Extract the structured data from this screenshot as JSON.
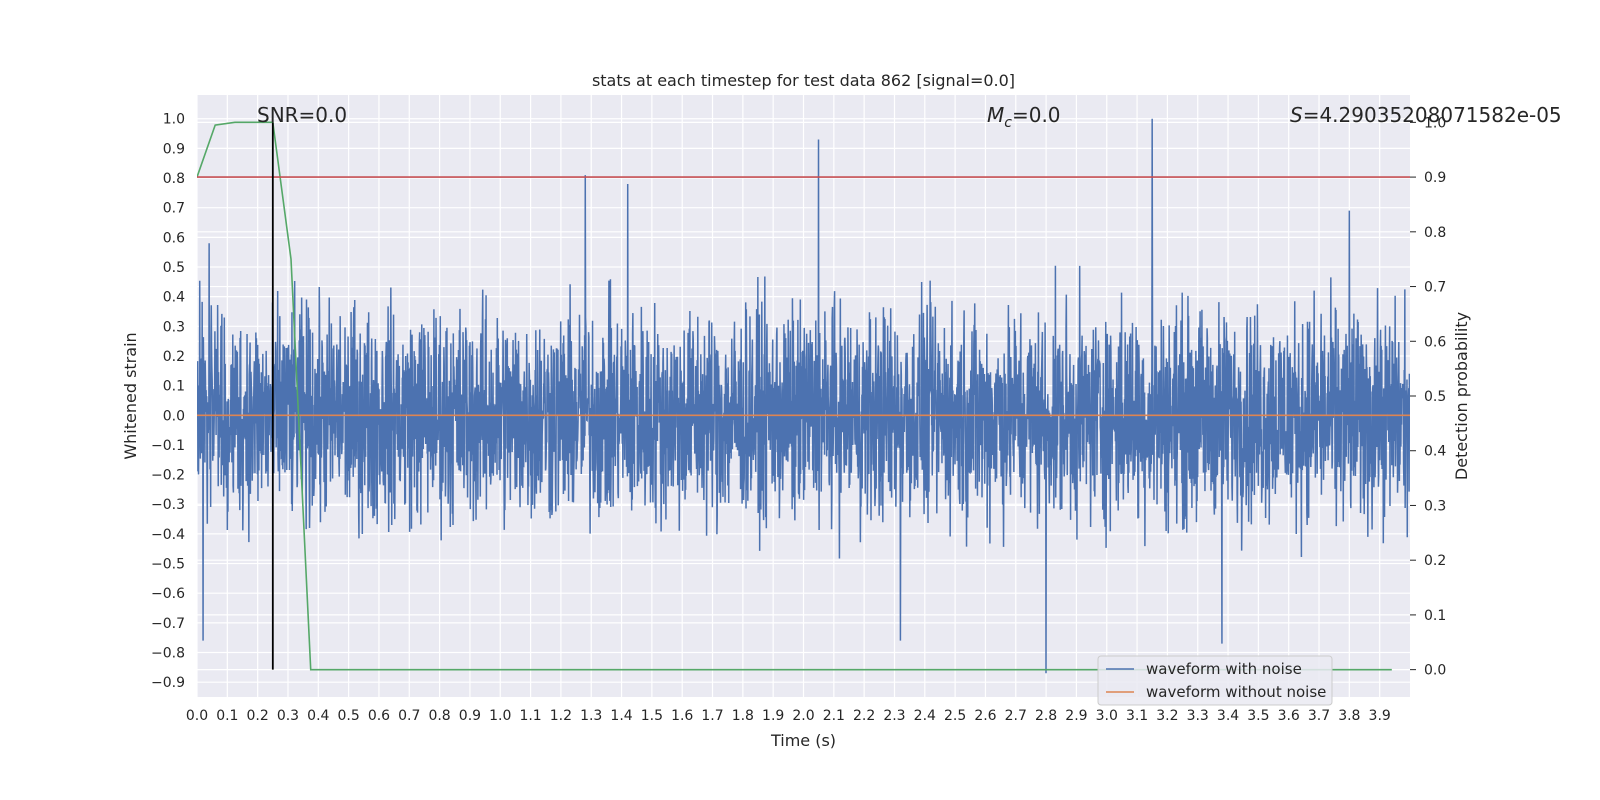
{
  "chart_data": {
    "type": "line",
    "title": "stats at each timestep for test data 862 [signal=0.0]",
    "xlabel": "Time (s)",
    "ylabel": "Whitened strain",
    "y2label": "Detection probability",
    "xlim": [
      0.0,
      4.0
    ],
    "ylim": [
      -0.95,
      1.08
    ],
    "y2lim": [
      -0.05,
      1.05
    ],
    "x_ticks": [
      0.0,
      0.1,
      0.2,
      0.3,
      0.4,
      0.5,
      0.6,
      0.7,
      0.8,
      0.9,
      1.0,
      1.1,
      1.2,
      1.3,
      1.4,
      1.5,
      1.6,
      1.7,
      1.8,
      1.9,
      2.0,
      2.1,
      2.2,
      2.3,
      2.4,
      2.5,
      2.6,
      2.7,
      2.8,
      2.9,
      3.0,
      3.1,
      3.2,
      3.3,
      3.4,
      3.5,
      3.6,
      3.7,
      3.8,
      3.9
    ],
    "y_ticks": [
      1.0,
      0.9,
      0.8,
      0.7,
      0.6,
      0.5,
      0.4,
      0.3,
      0.2,
      0.1,
      0.0,
      -0.1,
      -0.2,
      -0.3,
      -0.4,
      -0.5,
      -0.6,
      -0.7,
      -0.8,
      -0.9
    ],
    "y2_ticks": [
      1.0,
      0.9,
      0.8,
      0.7,
      0.6,
      0.5,
      0.4,
      0.3,
      0.2,
      0.1,
      0.0
    ],
    "grid": true,
    "legend_position": "lower-right",
    "annotations": {
      "snr": "SNR=0.0",
      "mc_symbol": "M",
      "mc_sub": "c",
      "mc_value": "=0.0",
      "s_symbol": "S",
      "s_value": "=4.29035208071582e-05"
    },
    "series": [
      {
        "name": "waveform with noise",
        "color": "#4c72b0",
        "axis": "left",
        "noise": {
          "samples": 4000,
          "typical_range": [
            -0.55,
            0.55
          ],
          "min": -0.87,
          "max": 1.0
        },
        "peaks": [
          [
            0.02,
            -0.76
          ],
          [
            0.04,
            0.58
          ],
          [
            1.28,
            0.81
          ],
          [
            1.42,
            0.78
          ],
          [
            2.05,
            0.93
          ],
          [
            2.32,
            -0.76
          ],
          [
            2.8,
            -0.87
          ],
          [
            3.15,
            1.0
          ],
          [
            3.38,
            -0.77
          ],
          [
            3.8,
            0.69
          ]
        ]
      },
      {
        "name": "waveform without noise",
        "color": "#dd8452",
        "axis": "left",
        "x": [
          0.0,
          4.0
        ],
        "y": [
          0.0,
          0.0
        ]
      },
      {
        "color": "#55a868",
        "axis": "right",
        "x": [
          0.0,
          0.06,
          0.125,
          0.19,
          0.25,
          0.31,
          0.375,
          3.94
        ],
        "y": [
          0.9,
          0.995,
          1.0,
          1.0,
          1.0,
          0.75,
          0.0,
          0.0
        ]
      },
      {
        "color": "#c44e52",
        "axis": "right",
        "x": [
          0.0,
          4.0
        ],
        "y": [
          0.9,
          0.9
        ]
      },
      {
        "color": "#000000",
        "axis": "right",
        "x": [
          0.25,
          0.25
        ],
        "y": [
          0.0,
          1.0
        ]
      }
    ]
  }
}
